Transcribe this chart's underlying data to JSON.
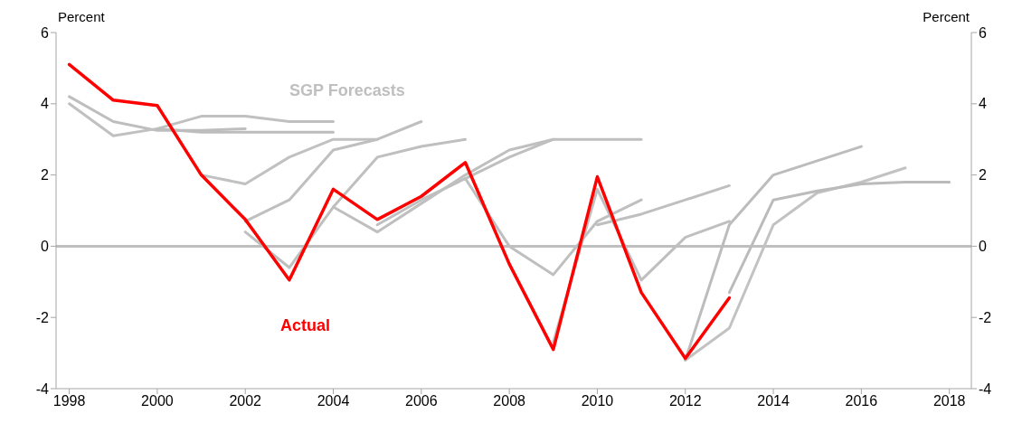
{
  "chart_data": {
    "type": "line",
    "ylabel": "Percent",
    "y2label": "Percent",
    "annotations": [
      "SGP Forecasts"
    ],
    "xlim": [
      1997.7,
      2018.5
    ],
    "xticks": [
      1998,
      2000,
      2002,
      2004,
      2006,
      2008,
      2010,
      2012,
      2014,
      2016,
      2018
    ],
    "ylim": [
      -4,
      6
    ],
    "yticks": [
      -4,
      -2,
      0,
      2,
      4,
      6
    ],
    "y2lim": [
      -4,
      6
    ],
    "y2ticks": [
      -4,
      -2,
      0,
      2,
      4,
      6
    ],
    "grid": false,
    "ref_lines": [
      {
        "axis": "y",
        "value": 0,
        "color": "#bfbfbf"
      }
    ],
    "series": [
      {
        "color": "#bebebe",
        "x": [
          1998,
          1999,
          2000,
          2001,
          2002
        ],
        "values": [
          4.2,
          3.5,
          3.25,
          3.25,
          3.3
        ]
      },
      {
        "color": "#c0c0c0",
        "x": [
          1998,
          1999,
          2000,
          2001,
          2002,
          2003,
          2004
        ],
        "values": [
          4.0,
          3.1,
          3.3,
          3.65,
          3.65,
          3.5,
          3.5
        ]
      },
      {
        "color": "#bdbdbd",
        "x": [
          2000,
          2001,
          2002,
          2003,
          2004
        ],
        "values": [
          3.3,
          3.2,
          3.2,
          3.2,
          3.2
        ]
      },
      {
        "color": "#c1c1c1",
        "x": [
          2001,
          2002,
          2003,
          2004,
          2005
        ],
        "values": [
          2.0,
          1.75,
          2.5,
          3.0,
          3.0
        ]
      },
      {
        "color": "#bfbfbf",
        "x": [
          2002,
          2003,
          2004,
          2005,
          2006
        ],
        "values": [
          0.7,
          1.3,
          2.7,
          3.0,
          3.5
        ]
      },
      {
        "color": "#bfbfbf",
        "x": [
          2002,
          2003,
          2004,
          2005,
          2006,
          2007
        ],
        "values": [
          0.4,
          -0.6,
          1.1,
          2.5,
          2.8,
          3.0
        ]
      },
      {
        "color": "#bfbfbf",
        "x": [
          2004,
          2005,
          2006,
          2007,
          2008,
          2009
        ],
        "values": [
          1.1,
          0.4,
          1.2,
          2.0,
          2.7,
          3.0
        ]
      },
      {
        "color": "#bfbfbf",
        "x": [
          2005,
          2006,
          2007,
          2008,
          2009,
          2010,
          2011
        ],
        "values": [
          0.6,
          1.3,
          1.9,
          2.5,
          3.0,
          3.0,
          3.0
        ]
      },
      {
        "color": "#bfbfbf",
        "x": [
          2007,
          2008,
          2009,
          2010,
          2011
        ],
        "values": [
          1.9,
          0.0,
          -0.8,
          0.7,
          1.3
        ]
      },
      {
        "color": "#bfbfbf",
        "x": [
          2009,
          2010,
          2011,
          2012,
          2013
        ],
        "values": [
          -2.7,
          1.6,
          -0.95,
          0.25,
          0.7
        ]
      },
      {
        "color": "#bfbfbf",
        "x": [
          2010,
          2011,
          2012,
          2013
        ],
        "values": [
          0.6,
          0.9,
          1.3,
          1.7
        ]
      },
      {
        "color": "#bcbcbc",
        "x": [
          2012,
          2013,
          2014,
          2015,
          2016
        ],
        "values": [
          -3.2,
          0.6,
          2.0,
          2.4,
          2.8
        ]
      },
      {
        "color": "#c2c2c2",
        "x": [
          2012,
          2013,
          2014,
          2015,
          2016,
          2017
        ],
        "values": [
          -3.2,
          -2.3,
          0.6,
          1.5,
          1.8,
          2.2
        ]
      },
      {
        "color": "#bbbbbb",
        "x": [
          2013,
          2014,
          2015,
          2016,
          2017,
          2018
        ],
        "values": [
          -1.3,
          1.3,
          1.55,
          1.75,
          1.8,
          1.8
        ]
      },
      {
        "name": "Actual",
        "color": "#ff0000",
        "x": [
          1998,
          1999,
          2000,
          2001,
          2002,
          2003,
          2004,
          2005,
          2006,
          2007,
          2008,
          2009,
          2010,
          2011,
          2012,
          2013
        ],
        "values": [
          5.1,
          4.1,
          3.95,
          2.0,
          0.75,
          -0.95,
          1.6,
          0.75,
          1.4,
          2.35,
          -0.5,
          -2.9,
          1.95,
          -1.3,
          -3.15,
          -1.45
        ]
      }
    ]
  }
}
